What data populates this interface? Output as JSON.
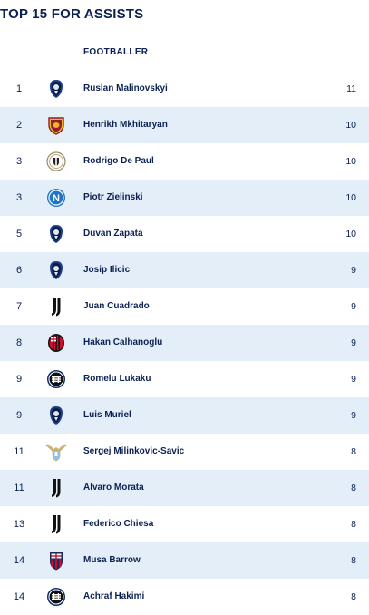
{
  "title": "TOP 15 FOR ASSISTS",
  "header": {
    "player_col": "FOOTBALLER"
  },
  "rows": [
    {
      "rank": "1",
      "club_icon": "atalanta-crest-icon",
      "name": "Ruslan Malinovskyi",
      "assists": "11"
    },
    {
      "rank": "2",
      "club_icon": "roma-crest-icon",
      "name": "Henrikh Mkhitaryan",
      "assists": "10"
    },
    {
      "rank": "3",
      "club_icon": "udinese-crest-icon",
      "name": "Rodrigo De Paul",
      "assists": "10"
    },
    {
      "rank": "3",
      "club_icon": "napoli-crest-icon",
      "name": "Piotr Zielinski",
      "assists": "10"
    },
    {
      "rank": "5",
      "club_icon": "atalanta-crest-icon",
      "name": "Duvan Zapata",
      "assists": "10"
    },
    {
      "rank": "6",
      "club_icon": "atalanta-crest-icon",
      "name": "Josip Ilicic",
      "assists": "9"
    },
    {
      "rank": "7",
      "club_icon": "juventus-crest-icon",
      "name": "Juan Cuadrado",
      "assists": "9"
    },
    {
      "rank": "8",
      "club_icon": "milan-crest-icon",
      "name": "Hakan Calhanoglu",
      "assists": "9"
    },
    {
      "rank": "9",
      "club_icon": "inter-crest-icon",
      "name": "Romelu Lukaku",
      "assists": "9"
    },
    {
      "rank": "9",
      "club_icon": "atalanta-crest-icon",
      "name": "Luis Muriel",
      "assists": "9"
    },
    {
      "rank": "11",
      "club_icon": "lazio-crest-icon",
      "name": "Sergej Milinkovic-Savic",
      "assists": "8"
    },
    {
      "rank": "11",
      "club_icon": "juventus-crest-icon",
      "name": "Alvaro Morata",
      "assists": "8"
    },
    {
      "rank": "13",
      "club_icon": "juventus-crest-icon",
      "name": "Federico Chiesa",
      "assists": "8"
    },
    {
      "rank": "14",
      "club_icon": "bologna-crest-icon",
      "name": "Musa Barrow",
      "assists": "8"
    },
    {
      "rank": "14",
      "club_icon": "inter-crest-icon",
      "name": "Achraf Hakimi",
      "assists": "8"
    }
  ],
  "colors": {
    "text": "#0b2154",
    "row_alt_bg": "#e3eef9",
    "rule": "#0b2154"
  }
}
